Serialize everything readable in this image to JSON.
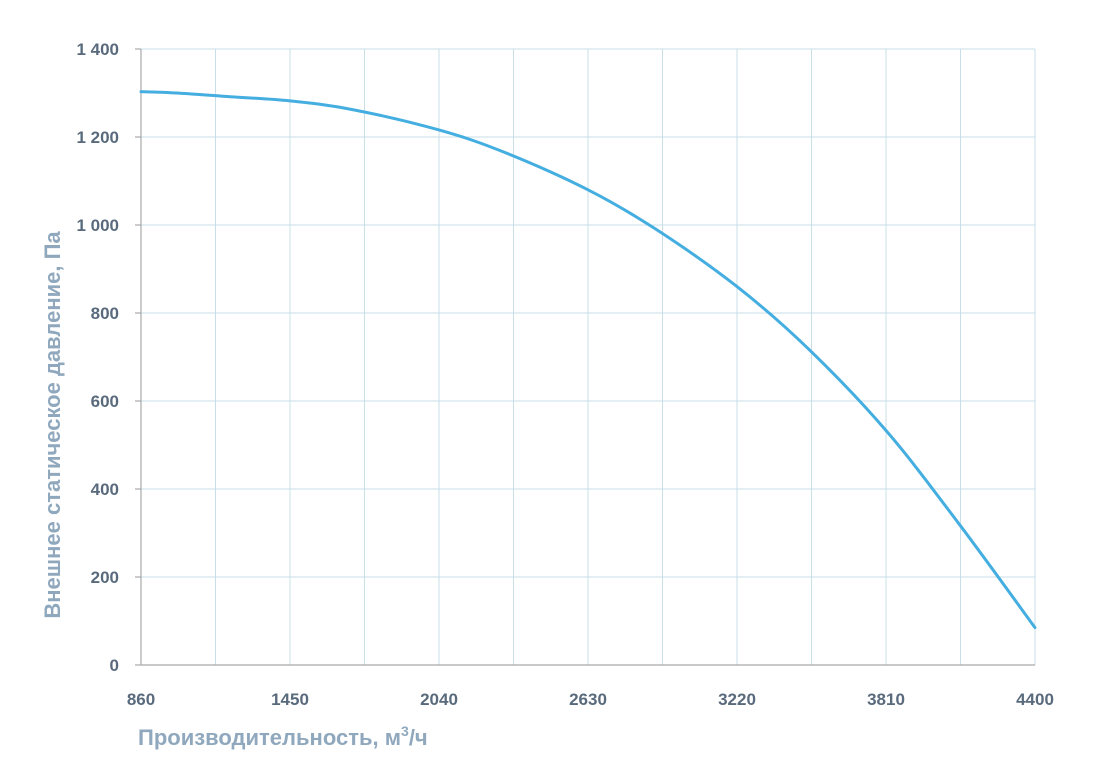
{
  "chart_data": {
    "type": "line",
    "title": "",
    "xlabel": "Производительность, м",
    "xlabel_sup": "3",
    "xlabel_suffix": "/ч",
    "ylabel": "Внешнее  статическое  давление, Па",
    "xlim": [
      860,
      4400
    ],
    "ylim": [
      0,
      1400
    ],
    "x_ticks": [
      860,
      1450,
      2040,
      2630,
      3220,
      3810,
      4400
    ],
    "x_tick_labels": [
      "860",
      "1450",
      "2040",
      "2630",
      "3220",
      "3810",
      "4400"
    ],
    "y_ticks": [
      0,
      200,
      400,
      600,
      800,
      1000,
      1200,
      1400
    ],
    "y_tick_labels": [
      "0",
      "200",
      "400",
      "600",
      "800",
      "1 000",
      "1 200",
      "1 400"
    ],
    "x_minor_gridlines": [
      1155,
      1745,
      2335,
      2925,
      3515,
      4105
    ],
    "grid": true,
    "series": [
      {
        "color": "#45aee0",
        "x": [
          860,
          1000,
          1200,
          1450,
          1700,
          2040,
          2300,
          2630,
          2900,
          3220,
          3500,
          3810,
          4100,
          4400
        ],
        "values": [
          1303,
          1300,
          1292,
          1282,
          1262,
          1216,
          1165,
          1080,
          990,
          860,
          720,
          533,
          320,
          85
        ]
      }
    ]
  }
}
